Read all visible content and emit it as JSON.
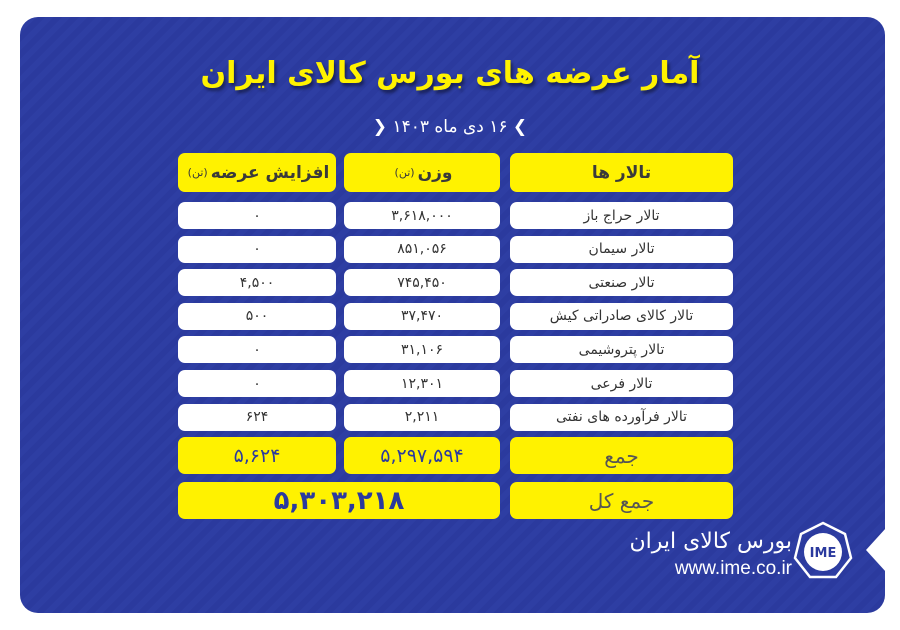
{
  "title": "آمار عرضه های بورس کالای ایران",
  "date": "۱۶ دی ماه ۱۴۰۳",
  "headers": {
    "halls": "تالار ها",
    "weight": "وزن",
    "weight_unit": "(تن)",
    "increase": "افزایش عرضه",
    "increase_unit": "(تن)"
  },
  "rows": [
    {
      "hall": "تالار حراج باز",
      "weight": "۳,۶۱۸,۰۰۰",
      "increase": "۰"
    },
    {
      "hall": "تالار سیمان",
      "weight": "۸۵۱,۰۵۶",
      "increase": "۰"
    },
    {
      "hall": "تالار صنعتی",
      "weight": "۷۴۵,۴۵۰",
      "increase": "۴,۵۰۰"
    },
    {
      "hall": "تالار کالای صادراتی کیش",
      "weight": "۳۷,۴۷۰",
      "increase": "۵۰۰"
    },
    {
      "hall": "تالار پتروشیمی",
      "weight": "۳۱,۱۰۶",
      "increase": "۰"
    },
    {
      "hall": "تالار فرعی",
      "weight": "۱۲,۳۰۱",
      "increase": "۰"
    },
    {
      "hall": "تالار فرآورده های نفتی",
      "weight": "۲,۲۱۱",
      "increase": "۶۲۴"
    }
  ],
  "sum": {
    "label": "جمع",
    "weight": "۵,۲۹۷,۵۹۴",
    "increase": "۵,۶۲۴"
  },
  "total": {
    "label": "جمع کل",
    "value": "۵,۳۰۳,۲۱۸"
  },
  "footer": {
    "org": "بورس کالای ایران",
    "url": "www.ime.co.ir",
    "logo_text": "IME"
  },
  "colors": {
    "background": "#2b3a9e",
    "accent": "#fff200"
  }
}
